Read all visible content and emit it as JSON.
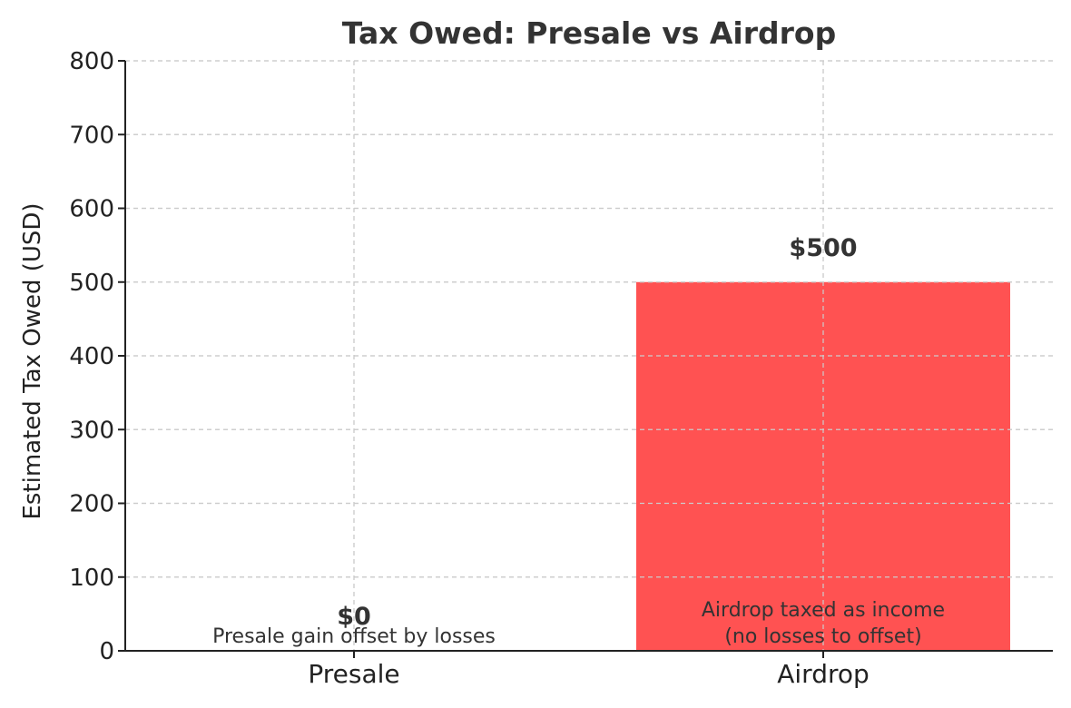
{
  "chart_data": {
    "type": "bar",
    "title": "Tax Owed: Presale vs Airdrop",
    "xlabel": "",
    "ylabel": "Estimated Tax Owed (USD)",
    "categories": [
      "Presale",
      "Airdrop"
    ],
    "values": [
      0,
      500
    ],
    "value_labels": [
      "$0",
      "$500"
    ],
    "annotations": [
      [
        "Presale gain offset by losses"
      ],
      [
        "Airdrop taxed as income",
        "(no losses to offset)"
      ]
    ],
    "bar_colors": [
      "#ff5252",
      "#ff5252"
    ],
    "ylim": [
      0,
      800
    ],
    "yticks": [
      0,
      100,
      200,
      300,
      400,
      500,
      600,
      700,
      800
    ],
    "grid": true
  }
}
